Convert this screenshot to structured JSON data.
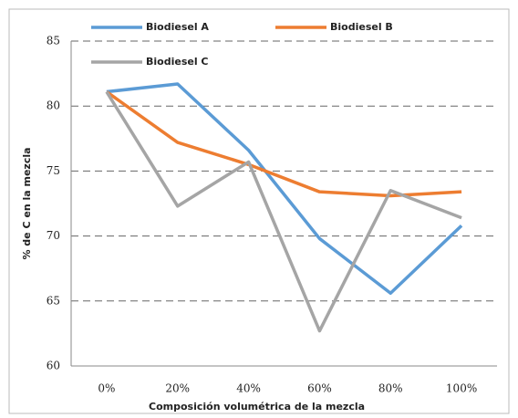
{
  "chart_data": {
    "type": "line",
    "x_label": "Composición volumétrica de la mezcla",
    "y_label": "% de C en la mezcla",
    "categories": [
      "0%",
      "20%",
      "40%",
      "60%",
      "80%",
      "100%"
    ],
    "series": [
      {
        "name": "Biodiesel A",
        "color": "#5b9bd5",
        "values": [
          81.1,
          81.7,
          76.6,
          69.8,
          65.6,
          70.8
        ]
      },
      {
        "name": "Biodiesel B",
        "color": "#ed7d31",
        "values": [
          81.1,
          77.2,
          75.5,
          73.4,
          73.1,
          73.4
        ]
      },
      {
        "name": "Biodiesel C",
        "color": "#a5a5a5",
        "values": [
          81.1,
          72.3,
          75.7,
          62.7,
          73.5,
          71.4
        ]
      }
    ],
    "ylim": [
      60,
      85
    ],
    "yticks": [
      60,
      65,
      70,
      75,
      80,
      85
    ],
    "grid": true
  }
}
